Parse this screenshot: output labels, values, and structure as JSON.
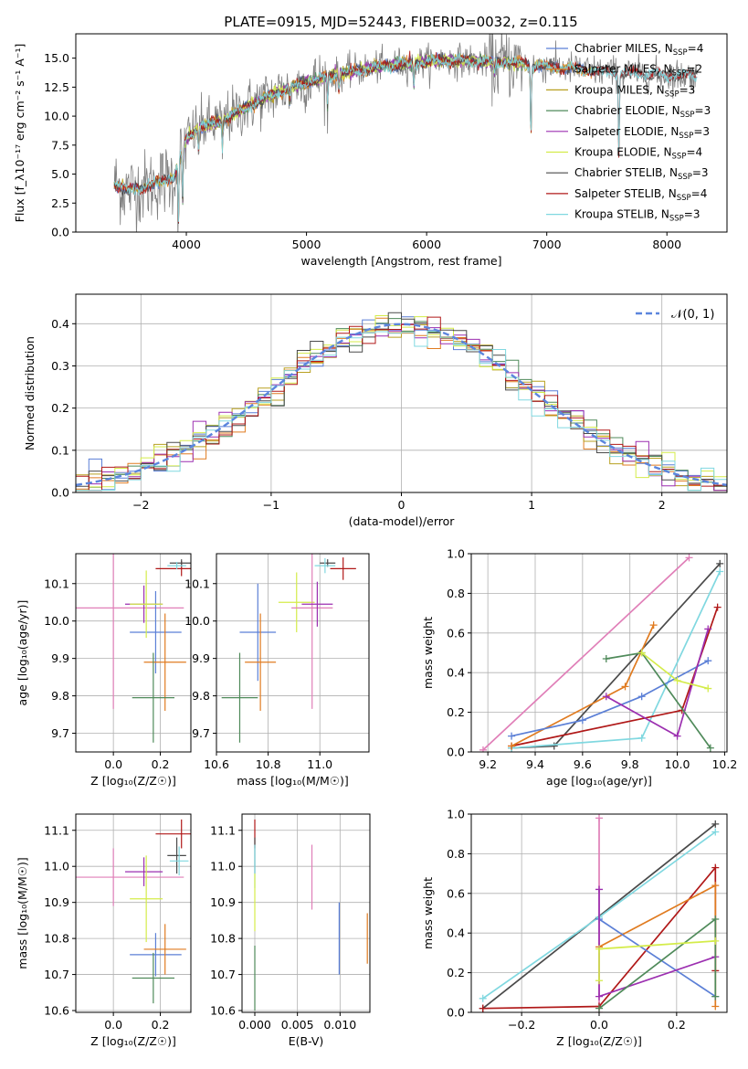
{
  "title": "PLATE=0915, MJD=52443, FIBERID=0032, z=0.115",
  "colors": {
    "chabrier_miles": "#5b7fd6",
    "salpeter_miles": "#e07b20",
    "kroupa_miles": "#b8a020",
    "chabrier_elodie": "#4f8a5a",
    "salpeter_elodie": "#9c2fb0",
    "kroupa_elodie": "#d4ec4a",
    "chabrier_stelib": "#4a4a4a",
    "salpeter_stelib": "#b01818",
    "kroupa_stelib": "#80d8e0",
    "pink": "#e07fb8",
    "normal_curve": "#5b85dd",
    "data_grey": "#808080"
  },
  "chart_data": [
    {
      "id": "spectrum",
      "type": "line",
      "xlabel": "wavelength [Angstrom, rest frame]",
      "ylabel": "Flux [f_λ10⁻¹⁷ erg cm⁻² s⁻¹ A⁻¹]",
      "xlim": [
        3080,
        8500
      ],
      "ylim": [
        0,
        17.1
      ],
      "xticks": [
        "4000",
        "5000",
        "6000",
        "7000",
        "8000"
      ],
      "yticks": [
        "0.0",
        "2.5",
        "5.0",
        "7.5",
        "10.0",
        "12.5",
        "15.0"
      ],
      "legend_position": "right",
      "legend": [
        {
          "label": "Chabrier MILES, N",
          "sub": "SSP",
          "suffix": "=4",
          "color": "chabrier_miles"
        },
        {
          "label": "Salpeter MILES, N",
          "sub": "SSP",
          "suffix": "=2",
          "color": "salpeter_miles"
        },
        {
          "label": "Kroupa MILES, N",
          "sub": "SSP",
          "suffix": "=3",
          "color": "kroupa_miles"
        },
        {
          "label": "Chabrier ELODIE, N",
          "sub": "SSP",
          "suffix": "=3",
          "color": "chabrier_elodie"
        },
        {
          "label": "Salpeter ELODIE, N",
          "sub": "SSP",
          "suffix": "=3",
          "color": "salpeter_elodie"
        },
        {
          "label": "Kroupa ELODIE, N",
          "sub": "SSP",
          "suffix": "=4",
          "color": "kroupa_elodie"
        },
        {
          "label": "Chabrier STELIB, N",
          "sub": "SSP",
          "suffix": "=3",
          "color": "chabrier_stelib"
        },
        {
          "label": "Salpeter STELIB, N",
          "sub": "SSP",
          "suffix": "=4",
          "color": "salpeter_stelib"
        },
        {
          "label": "Kroupa STELIB, N",
          "sub": "SSP",
          "suffix": "=3",
          "color": "kroupa_stelib"
        }
      ],
      "continuum": [
        [
          3400,
          4.2
        ],
        [
          3500,
          3.6
        ],
        [
          3700,
          4.0
        ],
        [
          3800,
          4.4
        ],
        [
          3900,
          4.8
        ],
        [
          4000,
          8.0
        ],
        [
          4100,
          9.0
        ],
        [
          4300,
          9.6
        ],
        [
          4500,
          10.8
        ],
        [
          4700,
          11.8
        ],
        [
          4900,
          12.6
        ],
        [
          5100,
          13.2
        ],
        [
          5300,
          13.7
        ],
        [
          5500,
          14.1
        ],
        [
          5700,
          14.4
        ],
        [
          5900,
          14.6
        ],
        [
          6100,
          14.8
        ],
        [
          6300,
          14.8
        ],
        [
          6500,
          14.7
        ],
        [
          6700,
          14.6
        ],
        [
          6900,
          14.4
        ],
        [
          7100,
          14.2
        ],
        [
          7300,
          14.0
        ],
        [
          7500,
          13.8
        ],
        [
          7700,
          13.7
        ],
        [
          7900,
          13.6
        ],
        [
          8100,
          13.5
        ],
        [
          8250,
          13.5
        ]
      ],
      "absorption_features": [
        [
          3934,
          5.0
        ],
        [
          3969,
          4.5
        ],
        [
          4102,
          1.8
        ],
        [
          4300,
          2.2
        ],
        [
          4861,
          1.3
        ],
        [
          5175,
          2.4
        ],
        [
          5270,
          1.3
        ],
        [
          5893,
          2.0
        ],
        [
          6563,
          0.9
        ],
        [
          6868,
          6.0
        ],
        [
          7600,
          7.0
        ]
      ]
    },
    {
      "id": "residuals",
      "type": "histogram",
      "xlabel": "(data-model)/error",
      "ylabel": "Normed distribution",
      "xlim": [
        -2.5,
        2.5
      ],
      "ylim": [
        0,
        0.47
      ],
      "xticks": [
        "−2",
        "−1",
        "0",
        "1",
        "2"
      ],
      "yticks": [
        "0.0",
        "0.1",
        "0.2",
        "0.3",
        "0.4"
      ],
      "bin_width": 0.1,
      "grid": true,
      "legend_position": "top-right",
      "legend": [
        {
          "label": "𝒩(0, 1)",
          "color": "normal_curve",
          "style": "dashed"
        }
      ],
      "normal": {
        "mean": 0,
        "sigma": 1
      }
    },
    {
      "id": "age_vs_Z",
      "type": "errorbar",
      "xlabel": "Z [log₁₀(Z/Z☉)]",
      "ylabel": "age  [log₁₀(age/yr)]",
      "xlim": [
        -0.16,
        0.33
      ],
      "ylim": [
        9.65,
        10.18
      ],
      "xticks": [
        "0.0",
        "0.2"
      ],
      "yticks": [
        "9.7",
        "9.8",
        "9.9",
        "10.0",
        "10.1"
      ],
      "grid": true,
      "points": [
        {
          "c": "pink",
          "x": 0.0,
          "xe": 0.3,
          "y": 10.035,
          "ye": 0.27
        },
        {
          "c": "chabrier_miles",
          "x": 0.18,
          "xe": 0.11,
          "y": 9.97,
          "ye": 0.11
        },
        {
          "c": "salpeter_miles",
          "x": 0.22,
          "xe": 0.09,
          "y": 9.89,
          "ye": 0.13
        },
        {
          "c": "chabrier_elodie",
          "x": 0.17,
          "xe": 0.09,
          "y": 9.795,
          "ye": 0.12
        },
        {
          "c": "salpeter_elodie",
          "x": 0.13,
          "xe": 0.08,
          "y": 10.045,
          "ye": 0.05
        },
        {
          "c": "kroupa_elodie",
          "x": 0.14,
          "xe": 0.07,
          "y": 10.045,
          "ye": 0.09
        },
        {
          "c": "salpeter_stelib",
          "x": 0.29,
          "xe": 0.11,
          "y": 10.14,
          "ye": 0.02
        },
        {
          "c": "chabrier_stelib",
          "x": 0.29,
          "xe": 0.05,
          "y": 10.155,
          "ye": 0.01
        },
        {
          "c": "kroupa_stelib",
          "x": 0.27,
          "xe": 0.04,
          "y": 10.148,
          "ye": 0.01
        }
      ]
    },
    {
      "id": "age_vs_mass",
      "type": "errorbar",
      "xlabel": "mass [log₁₀(M/M☉)]",
      "ylabel": "",
      "xlim": [
        10.6,
        11.19
      ],
      "ylim": [
        9.65,
        10.18
      ],
      "xticks": [
        "10.6",
        "10.8",
        "11.0"
      ],
      "yticks": [
        "9.7",
        "9.8",
        "9.9",
        "10.0",
        "10.1"
      ],
      "grid": true,
      "points": [
        {
          "c": "chabrier_elodie",
          "x": 10.69,
          "xe": 0.07,
          "y": 9.795,
          "ye": 0.12
        },
        {
          "c": "chabrier_miles",
          "x": 10.76,
          "xe": 0.07,
          "y": 9.97,
          "ye": 0.13
        },
        {
          "c": "salpeter_miles",
          "x": 10.77,
          "xe": 0.06,
          "y": 9.89,
          "ye": 0.13
        },
        {
          "c": "kroupa_elodie",
          "x": 10.91,
          "xe": 0.07,
          "y": 10.05,
          "ye": 0.08
        },
        {
          "c": "pink",
          "x": 10.97,
          "xe": 0.08,
          "y": 10.035,
          "ye": 0.27
        },
        {
          "c": "salpeter_elodie",
          "x": 10.99,
          "xe": 0.06,
          "y": 10.045,
          "ye": 0.06
        },
        {
          "c": "chabrier_stelib",
          "x": 11.03,
          "xe": 0.03,
          "y": 10.155,
          "ye": 0.01
        },
        {
          "c": "kroupa_stelib",
          "x": 11.02,
          "xe": 0.04,
          "y": 10.148,
          "ye": 0.02
        },
        {
          "c": "salpeter_stelib",
          "x": 11.09,
          "xe": 0.05,
          "y": 10.14,
          "ye": 0.03
        }
      ]
    },
    {
      "id": "weight_vs_age",
      "type": "line",
      "xlabel": "age  [log₁₀(age/yr)]",
      "ylabel": "mass weight",
      "xlim": [
        9.13,
        10.21
      ],
      "ylim": [
        0,
        1
      ],
      "xticks": [
        "9.2",
        "9.4",
        "9.6",
        "9.8",
        "10.0",
        "10.2"
      ],
      "yticks": [
        "0.0",
        "0.2",
        "0.4",
        "0.6",
        "0.8",
        "1.0"
      ],
      "grid": true,
      "series": [
        {
          "c": "pink",
          "x": [
            9.18,
            10.05
          ],
          "y": [
            0.01,
            0.98
          ]
        },
        {
          "c": "chabrier_stelib",
          "x": [
            9.3,
            9.48,
            10.18
          ],
          "y": [
            0.02,
            0.03,
            0.95
          ]
        },
        {
          "c": "kroupa_stelib",
          "x": [
            9.3,
            9.85,
            10.18
          ],
          "y": [
            0.02,
            0.07,
            0.91
          ]
        },
        {
          "c": "salpeter_stelib",
          "x": [
            9.3,
            10.02,
            10.17
          ],
          "y": [
            0.03,
            0.21,
            0.73
          ]
        },
        {
          "c": "salpeter_miles",
          "x": [
            9.3,
            9.78,
            9.9
          ],
          "y": [
            0.03,
            0.33,
            0.64
          ]
        },
        {
          "c": "chabrier_miles",
          "x": [
            9.3,
            9.6,
            9.85,
            10.13
          ],
          "y": [
            0.08,
            0.16,
            0.28,
            0.46
          ]
        },
        {
          "c": "salpeter_elodie",
          "x": [
            9.7,
            10.0,
            10.13
          ],
          "y": [
            0.28,
            0.08,
            0.62
          ]
        },
        {
          "c": "chabrier_elodie",
          "x": [
            9.7,
            9.85,
            10.14
          ],
          "y": [
            0.47,
            0.5,
            0.02
          ]
        },
        {
          "c": "kroupa_elodie",
          "x": [
            9.85,
            10.0,
            10.13
          ],
          "y": [
            0.5,
            0.36,
            0.32
          ]
        }
      ]
    },
    {
      "id": "mass_vs_Z",
      "type": "errorbar",
      "xlabel": "Z [log₁₀(Z/Z☉)]",
      "ylabel": "mass [log₁₀(M/M☉)]",
      "xlim": [
        -0.16,
        0.33
      ],
      "ylim": [
        10.595,
        11.145
      ],
      "xticks": [
        "0.0",
        "0.2"
      ],
      "yticks": [
        "10.6",
        "10.7",
        "10.8",
        "10.9",
        "11.0",
        "11.1"
      ],
      "grid": true,
      "points": [
        {
          "c": "pink",
          "x": 0.0,
          "xe": 0.3,
          "y": 10.97,
          "ye": 0.08
        },
        {
          "c": "chabrier_miles",
          "x": 0.18,
          "xe": 0.11,
          "y": 10.755,
          "ye": 0.06
        },
        {
          "c": "salpeter_miles",
          "x": 0.22,
          "xe": 0.09,
          "y": 10.77,
          "ye": 0.07
        },
        {
          "c": "chabrier_elodie",
          "x": 0.17,
          "xe": 0.09,
          "y": 10.69,
          "ye": 0.07
        },
        {
          "c": "salpeter_elodie",
          "x": 0.13,
          "xe": 0.08,
          "y": 10.985,
          "ye": 0.04
        },
        {
          "c": "kroupa_elodie",
          "x": 0.14,
          "xe": 0.07,
          "y": 10.91,
          "ye": 0.12
        },
        {
          "c": "salpeter_stelib",
          "x": 0.29,
          "xe": 0.11,
          "y": 11.09,
          "ye": 0.04
        },
        {
          "c": "chabrier_stelib",
          "x": 0.27,
          "xe": 0.04,
          "y": 11.03,
          "ye": 0.05
        },
        {
          "c": "kroupa_stelib",
          "x": 0.28,
          "xe": 0.04,
          "y": 11.015,
          "ye": 0.04
        }
      ]
    },
    {
      "id": "mass_vs_ebv",
      "type": "errorbar",
      "xlabel": "E(B-V)",
      "ylabel": "",
      "xlim": [
        -0.0015,
        0.0135
      ],
      "ylim": [
        10.595,
        11.145
      ],
      "xticks": [
        "0.000",
        "0.005",
        "0.010"
      ],
      "yticks": [
        "10.6",
        "10.7",
        "10.8",
        "10.9",
        "11.0",
        "11.1"
      ],
      "grid": true,
      "points": [
        {
          "c": "salpeter_stelib",
          "x": 0.0,
          "xe": 0,
          "y": 11.09,
          "ye": 0.04
        },
        {
          "c": "chabrier_stelib",
          "x": 0.0,
          "xe": 0,
          "y": 11.03,
          "ye": 0.05
        },
        {
          "c": "kroupa_stelib",
          "x": 0.0,
          "xe": 0,
          "y": 11.0,
          "ye": 0.06
        },
        {
          "c": "kroupa_elodie",
          "x": 0.0,
          "xe": 0,
          "y": 10.9,
          "ye": 0.08
        },
        {
          "c": "chabrier_elodie",
          "x": 0.0,
          "xe": 0,
          "y": 10.69,
          "ye": 0.09
        },
        {
          "c": "pink",
          "x": 0.0067,
          "xe": 0,
          "y": 10.97,
          "ye": 0.09
        },
        {
          "c": "chabrier_miles",
          "x": 0.0099,
          "xe": 0,
          "y": 10.8,
          "ye": 0.1
        },
        {
          "c": "salpeter_miles",
          "x": 0.0132,
          "xe": 0,
          "y": 10.8,
          "ye": 0.07
        }
      ]
    },
    {
      "id": "weight_vs_Z",
      "type": "line",
      "xlabel": "Z [log₁₀(Z/Z☉)]",
      "ylabel": "mass weight",
      "xlim": [
        -0.33,
        0.33
      ],
      "ylim": [
        0,
        1
      ],
      "xticks": [
        "−0.2",
        "0.0",
        "0.2"
      ],
      "yticks": [
        "0.0",
        "0.2",
        "0.4",
        "0.6",
        "0.8",
        "1.0"
      ],
      "grid": true,
      "series": [
        {
          "c": "pink",
          "x": [
            0.0,
            0.0
          ],
          "y": [
            0.0,
            0.98
          ]
        },
        {
          "c": "chabrier_stelib",
          "x": [
            -0.3,
            0.3
          ],
          "y": [
            0.02,
            0.95
          ]
        },
        {
          "c": "kroupa_stelib",
          "x": [
            -0.3,
            0.0,
            0.3
          ],
          "y": [
            0.07,
            0.48,
            0.91
          ]
        },
        {
          "c": "salpeter_stelib",
          "x": [
            -0.3,
            0.0,
            0.3,
            0.3
          ],
          "y": [
            0.02,
            0.03,
            0.73,
            0.21
          ]
        },
        {
          "c": "salpeter_miles",
          "x": [
            0.0,
            0.3,
            0.3
          ],
          "y": [
            0.33,
            0.64,
            0.03
          ]
        },
        {
          "c": "chabrier_miles",
          "x": [
            0.0,
            0.3
          ],
          "y": [
            0.47,
            0.08
          ]
        },
        {
          "c": "salpeter_elodie",
          "x": [
            0.0,
            0.0,
            0.3
          ],
          "y": [
            0.62,
            0.08,
            0.28
          ]
        },
        {
          "c": "chabrier_elodie",
          "x": [
            0.0,
            0.3,
            0.3
          ],
          "y": [
            0.02,
            0.47,
            0.08
          ]
        },
        {
          "c": "kroupa_elodie",
          "x": [
            0.0,
            0.0,
            0.3
          ],
          "y": [
            0.16,
            0.32,
            0.36
          ]
        }
      ]
    }
  ]
}
